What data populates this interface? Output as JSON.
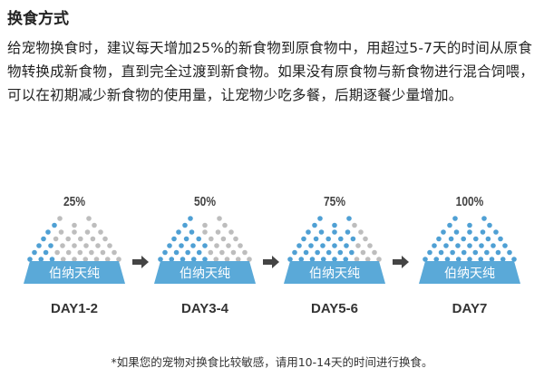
{
  "title": "换食方式",
  "body": "给宠物换食时，建议每天增加25%的新食物到原食物中，用超过5-7天的时间从原食物转换成新食物，直到完全过渡到新食物。如果没有原食物与新食物进行混合饲喂，可以在初期减少新食物的使用量，让宠物少吃多餐，后期逐餐少量增加。",
  "brand_label": "伯纳天纯",
  "colors": {
    "new_food": "#4fa0d4",
    "old_food": "#bdbdbd",
    "bowl": "#5aa9d8",
    "arrow": "#444444"
  },
  "steps": [
    {
      "percent": "25%",
      "new_fraction": 0.25,
      "day": "DAY1-2"
    },
    {
      "percent": "50%",
      "new_fraction": 0.5,
      "day": "DAY3-4"
    },
    {
      "percent": "75%",
      "new_fraction": 0.75,
      "day": "DAY5-6"
    },
    {
      "percent": "100%",
      "new_fraction": 1.0,
      "day": "DAY7"
    }
  ],
  "footnote": "*如果您的宠物对换食比较敏感，请用10-14天的时间进行换食。"
}
